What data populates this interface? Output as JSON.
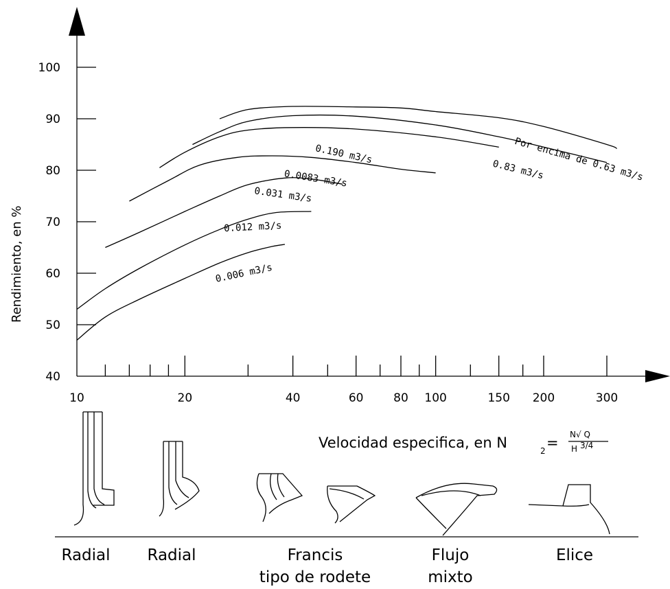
{
  "chart_data": {
    "type": "line",
    "title": "",
    "ylabel": "Rendimiento, en %",
    "xlabel": "Velocidad especifica, en N",
    "formula": {
      "lhs": "Velocidad especifica, en N",
      "subscript": "2",
      "numerator": "N√ Q",
      "denominator": "H",
      "exponent": "3/4"
    },
    "xscale": "log",
    "xlim": [
      10,
      330
    ],
    "ylim": [
      40,
      100
    ],
    "yticks": [
      40,
      50,
      60,
      70,
      80,
      90,
      100
    ],
    "ytick_labels": [
      "40",
      "50",
      "60",
      "70",
      "80",
      "90",
      "100"
    ],
    "xticks_major": [
      10,
      20,
      40,
      60,
      80,
      100,
      150,
      200,
      300
    ],
    "xtick_labels": [
      "10",
      "20",
      "40",
      "60",
      "80",
      "100",
      "150",
      "200",
      "300"
    ],
    "xticks_minor": [
      12,
      14,
      16,
      18,
      30,
      50,
      70,
      90,
      125,
      175
    ],
    "grid": false,
    "series": [
      {
        "name": "0.006 m3/s",
        "points": [
          [
            10,
            47
          ],
          [
            12,
            51.5
          ],
          [
            15,
            55
          ],
          [
            20,
            59
          ],
          [
            25,
            62
          ],
          [
            30,
            64
          ],
          [
            35,
            65.2
          ],
          [
            38,
            65.6
          ]
        ]
      },
      {
        "name": "0.012 m3/s",
        "points": [
          [
            10,
            53
          ],
          [
            12,
            57
          ],
          [
            15,
            61
          ],
          [
            20,
            65.5
          ],
          [
            25,
            68.5
          ],
          [
            30,
            70.5
          ],
          [
            36,
            71.8
          ],
          [
            45,
            72
          ]
        ]
      },
      {
        "name": "0.031 m3/s",
        "points": [
          [
            12,
            65
          ],
          [
            15,
            68
          ],
          [
            20,
            72
          ],
          [
            25,
            75
          ],
          [
            30,
            77.2
          ],
          [
            38,
            78.5
          ],
          [
            45,
            78.3
          ],
          [
            55,
            77.3
          ]
        ]
      },
      {
        "name": "0.0083 m3/s",
        "points": [
          [
            14,
            74
          ],
          [
            18,
            78
          ],
          [
            22,
            81
          ],
          [
            28,
            82.5
          ],
          [
            35,
            82.8
          ],
          [
            45,
            82.5
          ],
          [
            60,
            81.5
          ],
          [
            80,
            80.2
          ],
          [
            100,
            79.5
          ]
        ]
      },
      {
        "name": "0.190 m3/s",
        "points": [
          [
            17,
            80.5
          ],
          [
            20,
            83.5
          ],
          [
            25,
            86.5
          ],
          [
            30,
            87.8
          ],
          [
            40,
            88.3
          ],
          [
            60,
            88
          ],
          [
            100,
            86.5
          ],
          [
            150,
            84.5
          ]
        ]
      },
      {
        "name": "0.83 m3/s",
        "points": [
          [
            21,
            85
          ],
          [
            25,
            87.5
          ],
          [
            30,
            89.5
          ],
          [
            40,
            90.6
          ],
          [
            60,
            90.5
          ],
          [
            100,
            88.8
          ],
          [
            150,
            86.5
          ],
          [
            200,
            84.5
          ],
          [
            300,
            81.5
          ]
        ]
      },
      {
        "name": "Por encima de 0.63 m3/s",
        "points": [
          [
            25,
            90
          ],
          [
            30,
            91.8
          ],
          [
            40,
            92.4
          ],
          [
            60,
            92.3
          ],
          [
            80,
            92.1
          ],
          [
            100,
            91.4
          ],
          [
            150,
            90.2
          ],
          [
            200,
            88.5
          ],
          [
            300,
            85
          ],
          [
            320,
            84.2
          ]
        ]
      }
    ],
    "runner_types": [
      "Radial",
      "Radial",
      "Francis\ntipo de rodete",
      "Flujo\nmixto",
      "Elice"
    ],
    "runner_labels": [
      {
        "lines": [
          "Radial"
        ]
      },
      {
        "lines": [
          "Radial"
        ]
      },
      {
        "lines": [
          "Francis",
          "tipo de rodete"
        ]
      },
      {
        "lines": [
          "Flujo",
          "mixto"
        ]
      },
      {
        "lines": [
          "Elice"
        ]
      }
    ]
  }
}
